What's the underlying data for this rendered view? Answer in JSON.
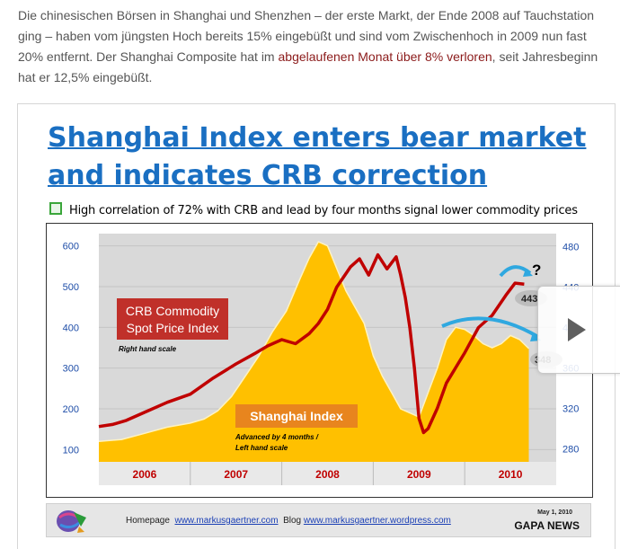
{
  "intro": {
    "text_before_link": "Die chinesischen Börsen in Shanghai und Shenzhen – der erste Markt, der Ende 2008 auf Tauchstation ging – haben vom jüngsten Hoch bereits 15% eingebüßt und sind vom Zwischenhoch in 2009 nun fast 20% entfernt. Der Shanghai Composite hat im ",
    "link_text": "abgelaufenen Monat über 8% verloren",
    "text_after_link": ", seit Jahresbeginn hat er 12,5% eingebüßt.",
    "link_color": "#8b1a1a"
  },
  "slide": {
    "title": "Shanghai Index enters bear market and indicates CRB correction",
    "subtitle": "High correlation of 72% with CRB and lead by four months signal lower commodity prices"
  },
  "chart_data": {
    "type": "line",
    "title": "",
    "x_categories": [
      "2006",
      "2007",
      "2008",
      "2009",
      "2010"
    ],
    "left_axis": {
      "ticks": [
        100,
        200,
        300,
        400,
        500,
        600
      ],
      "ylim": [
        70,
        630
      ]
    },
    "right_axis": {
      "ticks": [
        280,
        320,
        360,
        400,
        440,
        480
      ],
      "ylim": [
        267,
        493
      ]
    },
    "series": [
      {
        "name": "CRB Commodity Spot Price Index",
        "scale_note": "Right hand scale",
        "axis": "right",
        "color": "#c00000",
        "x": [
          0,
          0.03,
          0.06,
          0.1,
          0.15,
          0.2,
          0.25,
          0.3,
          0.34,
          0.37,
          0.4,
          0.43,
          0.46,
          0.48,
          0.5,
          0.52,
          0.55,
          0.57,
          0.59,
          0.61,
          0.63,
          0.65,
          0.66,
          0.67,
          0.68,
          0.69,
          0.7,
          0.71,
          0.72,
          0.74,
          0.76,
          0.8,
          0.83,
          0.86,
          0.89,
          0.91,
          0.93
        ],
        "values": [
          302,
          304,
          308,
          316,
          326,
          334,
          350,
          364,
          374,
          382,
          388,
          384,
          394,
          404,
          418,
          440,
          460,
          468,
          452,
          472,
          458,
          470,
          452,
          430,
          400,
          360,
          310,
          296,
          300,
          320,
          345,
          375,
          400,
          412,
          432,
          444,
          443
        ],
        "end_label": "443"
      },
      {
        "name": "Shanghai Index",
        "scale_note": "Advanced by 4 months / Left hand scale",
        "axis": "left",
        "color": "#ffc000",
        "x": [
          0,
          0.05,
          0.1,
          0.15,
          0.2,
          0.23,
          0.26,
          0.29,
          0.32,
          0.35,
          0.38,
          0.41,
          0.44,
          0.46,
          0.48,
          0.5,
          0.52,
          0.54,
          0.56,
          0.58,
          0.6,
          0.62,
          0.64,
          0.66,
          0.68,
          0.7,
          0.72,
          0.74,
          0.76,
          0.78,
          0.8,
          0.82,
          0.84,
          0.86,
          0.88,
          0.9,
          0.92,
          0.94
        ],
        "values": [
          120,
          125,
          140,
          155,
          165,
          175,
          195,
          230,
          280,
          330,
          390,
          440,
          520,
          570,
          610,
          600,
          545,
          490,
          450,
          410,
          330,
          280,
          240,
          200,
          190,
          180,
          240,
          300,
          370,
          400,
          395,
          380,
          360,
          350,
          360,
          380,
          370,
          348
        ],
        "end_label": "348"
      }
    ],
    "annotations": [
      "?"
    ],
    "legend": "inline-labels"
  },
  "chart_labels": {
    "crb_line1": "CRB Commodity",
    "crb_line2": "Spot Price Index",
    "crb_note": "Right hand scale",
    "shanghai_label": "Shanghai Index",
    "shanghai_note1": "Advanced by 4 months /",
    "shanghai_note2": "Left hand scale",
    "question_mark": "?",
    "crb_end": "443",
    "shanghai_end": "348"
  },
  "footer": {
    "homepage_label": "Homepage",
    "homepage_link": "www.markusgaertner.com",
    "blog_label": "Blog",
    "blog_link": "www.markusgaertner.wordpress.com",
    "date": "May 1, 2010",
    "brand": "GAPA NEWS"
  },
  "colors": {
    "title_blue": "#1a6fc2",
    "crb_red": "#c00000",
    "shanghai_gold": "#ffc000",
    "plot_bg": "#d9d9d9",
    "axis_text": "#1f4ea8"
  },
  "icons": {
    "bullet": "checkbox-bullet-icon",
    "next": "play-next-icon",
    "logo": "gapa-logo-icon"
  }
}
